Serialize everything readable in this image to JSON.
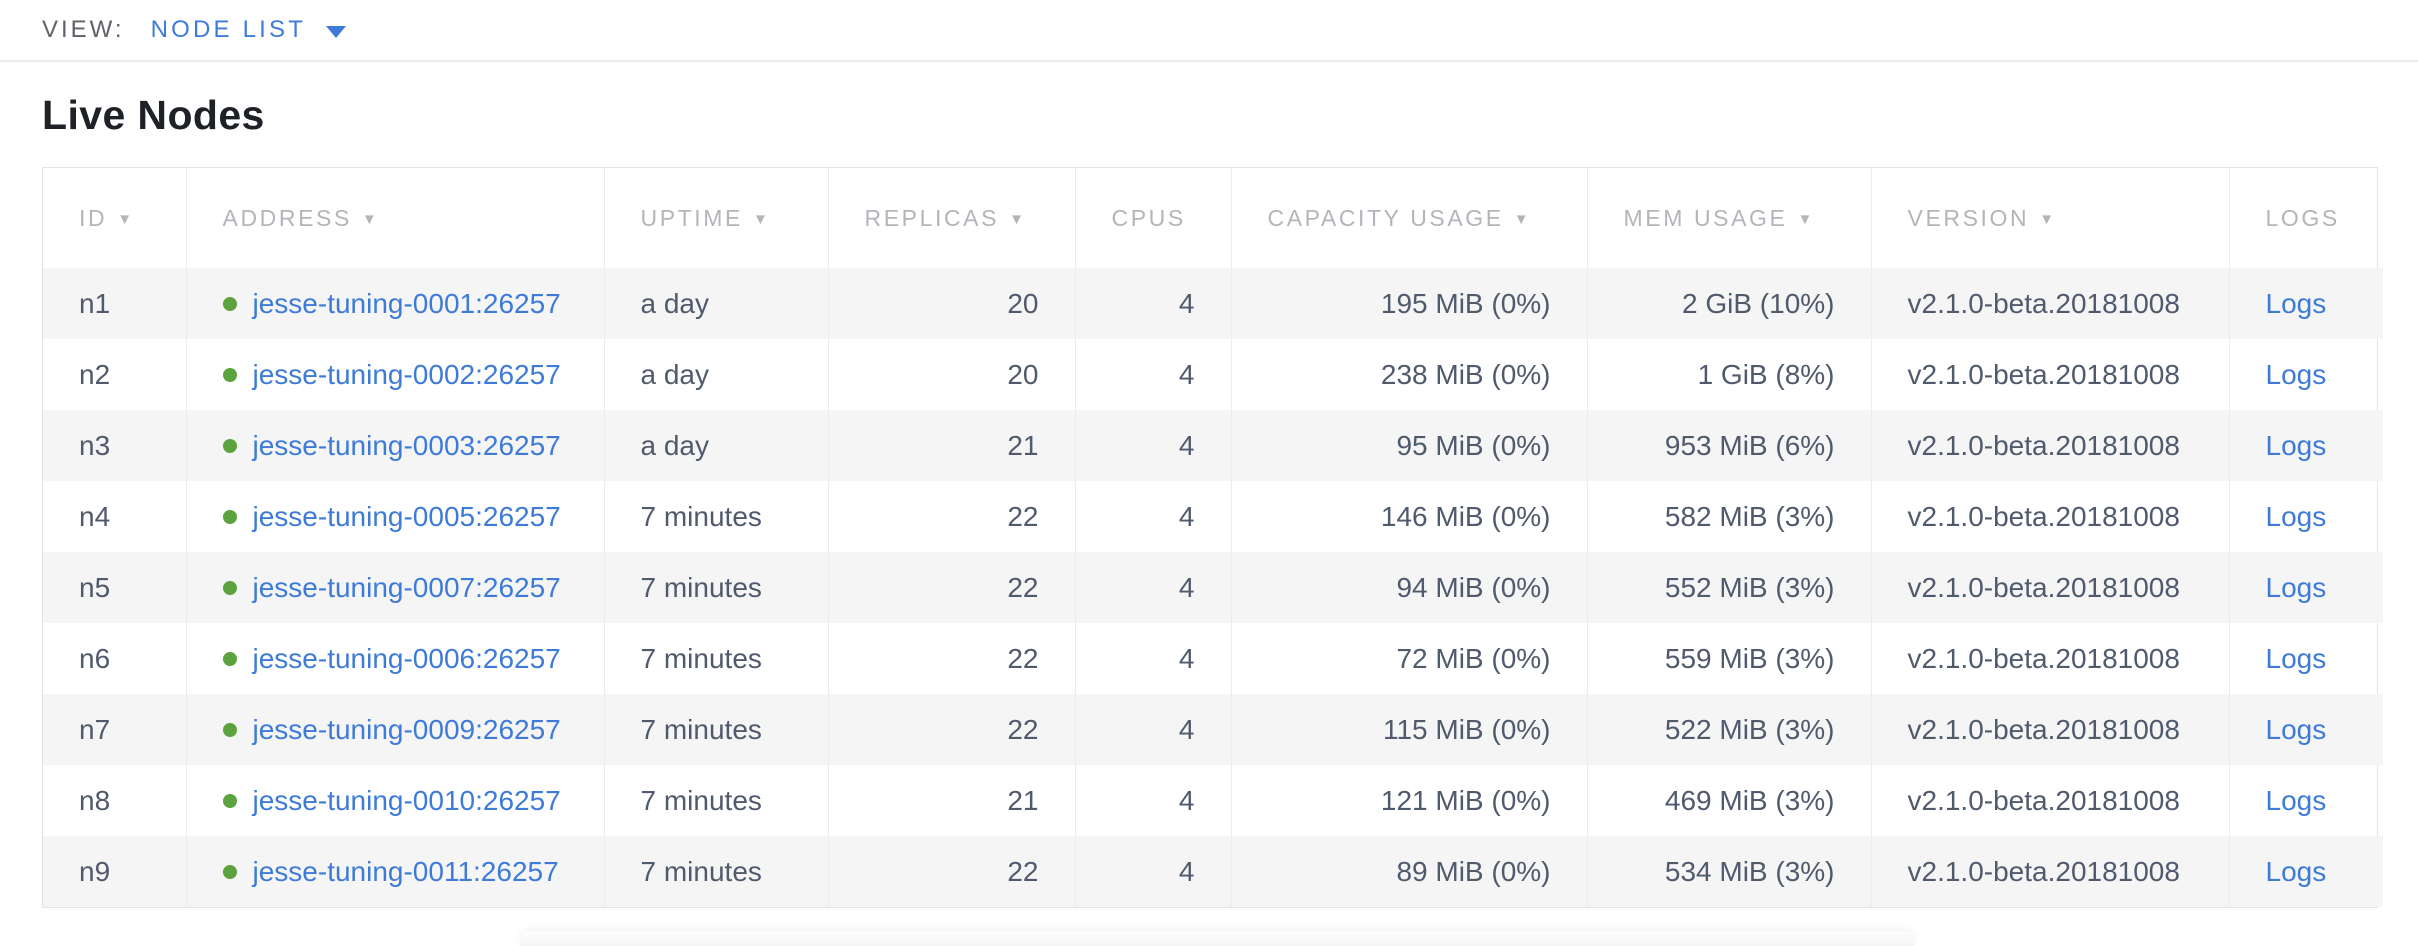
{
  "view_bar": {
    "label": "VIEW:",
    "selected": "NODE LIST"
  },
  "page": {
    "title": "Live Nodes"
  },
  "colors": {
    "link": "#3e7bd8",
    "live_dot": "#5ca23e",
    "header_text": "#b3b5ba",
    "body_text": "#505a6d",
    "row_stripe": "#f5f5f6",
    "border": "#e3e3e6",
    "title_text": "#1e2126",
    "view_label": "#5f6268"
  },
  "table": {
    "columns": [
      {
        "key": "id",
        "label": "ID",
        "sorted": true
      },
      {
        "key": "address",
        "label": "ADDRESS",
        "sorted": true
      },
      {
        "key": "uptime",
        "label": "UPTIME",
        "sorted": true
      },
      {
        "key": "replicas",
        "label": "REPLICAS",
        "sorted": true
      },
      {
        "key": "cpus",
        "label": "CPUS",
        "sorted": false
      },
      {
        "key": "capacity",
        "label": "CAPACITY USAGE",
        "sorted": true
      },
      {
        "key": "mem",
        "label": "MEM USAGE",
        "sorted": true
      },
      {
        "key": "version",
        "label": "VERSION",
        "sorted": true
      },
      {
        "key": "logs",
        "label": "LOGS",
        "sorted": false
      }
    ],
    "logs_label": "Logs",
    "rows": [
      {
        "id": "n1",
        "status": "live",
        "address": "jesse-tuning-0001:26257",
        "uptime": "a day",
        "replicas": "20",
        "cpus": "4",
        "capacity": "195 MiB (0%)",
        "mem": "2 GiB (10%)",
        "version": "v2.1.0-beta.20181008"
      },
      {
        "id": "n2",
        "status": "live",
        "address": "jesse-tuning-0002:26257",
        "uptime": "a day",
        "replicas": "20",
        "cpus": "4",
        "capacity": "238 MiB (0%)",
        "mem": "1 GiB (8%)",
        "version": "v2.1.0-beta.20181008"
      },
      {
        "id": "n3",
        "status": "live",
        "address": "jesse-tuning-0003:26257",
        "uptime": "a day",
        "replicas": "21",
        "cpus": "4",
        "capacity": "95 MiB (0%)",
        "mem": "953 MiB (6%)",
        "version": "v2.1.0-beta.20181008"
      },
      {
        "id": "n4",
        "status": "live",
        "address": "jesse-tuning-0005:26257",
        "uptime": "7 minutes",
        "replicas": "22",
        "cpus": "4",
        "capacity": "146 MiB (0%)",
        "mem": "582 MiB (3%)",
        "version": "v2.1.0-beta.20181008"
      },
      {
        "id": "n5",
        "status": "live",
        "address": "jesse-tuning-0007:26257",
        "uptime": "7 minutes",
        "replicas": "22",
        "cpus": "4",
        "capacity": "94 MiB (0%)",
        "mem": "552 MiB (3%)",
        "version": "v2.1.0-beta.20181008"
      },
      {
        "id": "n6",
        "status": "live",
        "address": "jesse-tuning-0006:26257",
        "uptime": "7 minutes",
        "replicas": "22",
        "cpus": "4",
        "capacity": "72 MiB (0%)",
        "mem": "559 MiB (3%)",
        "version": "v2.1.0-beta.20181008"
      },
      {
        "id": "n7",
        "status": "live",
        "address": "jesse-tuning-0009:26257",
        "uptime": "7 minutes",
        "replicas": "22",
        "cpus": "4",
        "capacity": "115 MiB (0%)",
        "mem": "522 MiB (3%)",
        "version": "v2.1.0-beta.20181008"
      },
      {
        "id": "n8",
        "status": "live",
        "address": "jesse-tuning-0010:26257",
        "uptime": "7 minutes",
        "replicas": "21",
        "cpus": "4",
        "capacity": "121 MiB (0%)",
        "mem": "469 MiB (3%)",
        "version": "v2.1.0-beta.20181008"
      },
      {
        "id": "n9",
        "status": "live",
        "address": "jesse-tuning-0011:26257",
        "uptime": "7 minutes",
        "replicas": "22",
        "cpus": "4",
        "capacity": "89 MiB (0%)",
        "mem": "534 MiB (3%)",
        "version": "v2.1.0-beta.20181008"
      }
    ]
  }
}
